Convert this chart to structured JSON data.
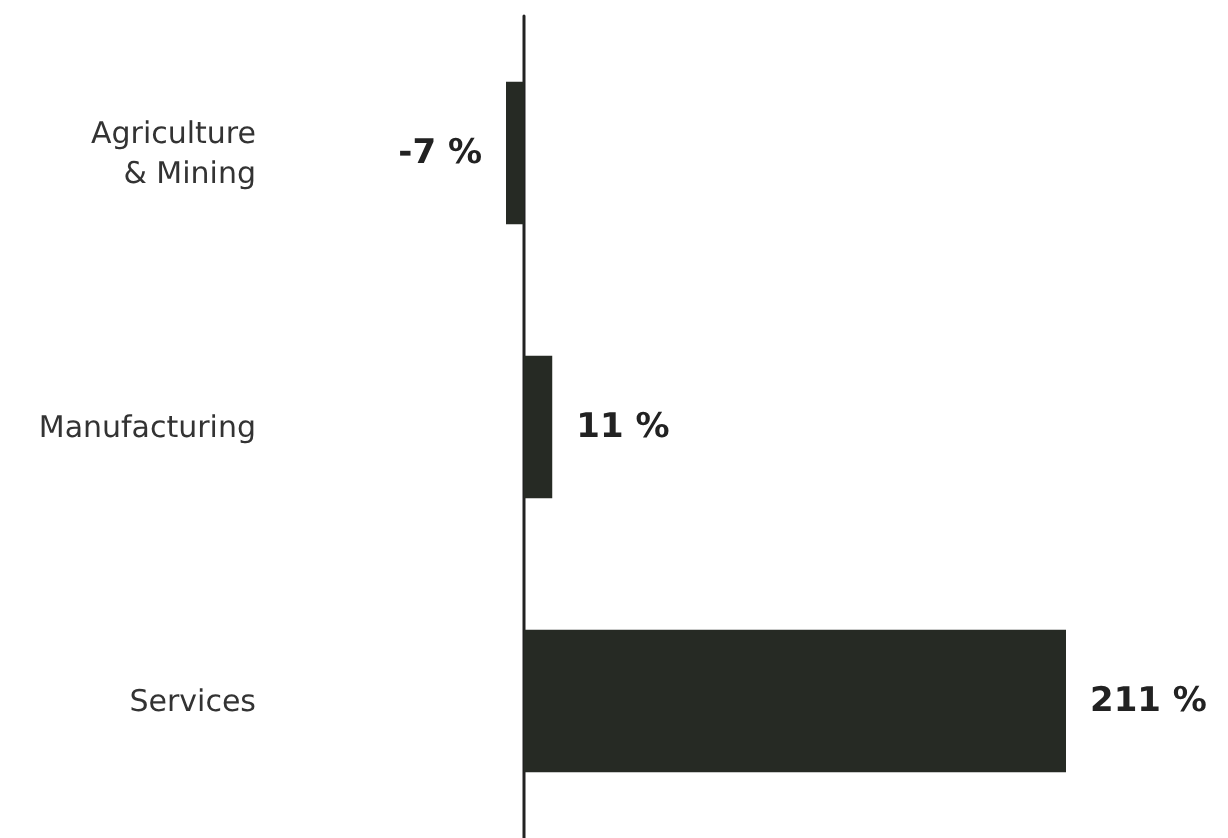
{
  "chart_data": {
    "type": "bar",
    "orientation": "horizontal",
    "categories": [
      "Agriculture\n& Mining",
      "Manufacturing",
      "Services"
    ],
    "values": [
      -7,
      11,
      211
    ],
    "value_labels": [
      "-7 %",
      "11 %",
      "211 %"
    ],
    "color": "#262a24"
  }
}
